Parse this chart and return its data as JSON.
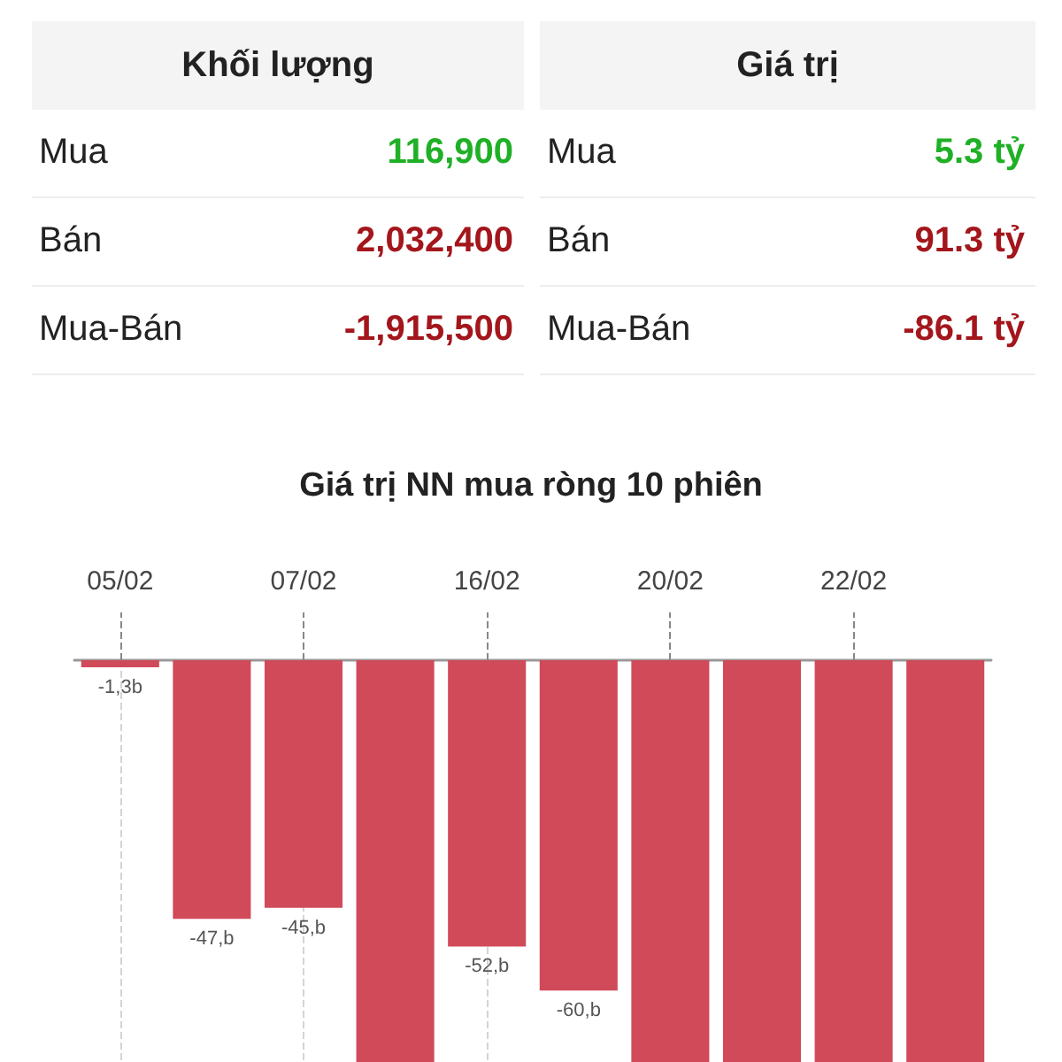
{
  "chart_data": [
    {
      "type": "other",
      "title": "Khối lượng",
      "categories": [
        "Mua",
        "Bán",
        "Mua-Bán"
      ],
      "value_labels": [
        "116,900",
        "2,032,400",
        "-1,915,500"
      ],
      "colors": [
        "#1fb026",
        "#a3161c",
        "#a3161c"
      ]
    },
    {
      "type": "other",
      "title": "Giá trị",
      "categories": [
        "Mua",
        "Bán",
        "Mua-Bán"
      ],
      "value_labels": [
        "5.3 tỷ",
        "91.3 tỷ",
        "-86.1 tỷ"
      ],
      "colors": [
        "#1fb026",
        "#a3161c",
        "#a3161c"
      ]
    },
    {
      "type": "bar",
      "title": "Giá trị NN mua ròng 10 phiên",
      "categories": [
        "05/02",
        null,
        "07/02",
        null,
        "16/02",
        null,
        "20/02",
        null,
        "22/02",
        null
      ],
      "values": [
        -1.3,
        -47,
        -45,
        -73,
        -52,
        -60,
        -73,
        -73,
        -73,
        -73
      ],
      "value_labels": [
        "-1,3b",
        "-47,b",
        "-45,b",
        null,
        "-52,b",
        "-60,b",
        null,
        null,
        null,
        null
      ],
      "color": "#d04a5a",
      "ylim": [
        -73,
        0
      ],
      "grid": "x",
      "tick_labels": "x"
    }
  ]
}
